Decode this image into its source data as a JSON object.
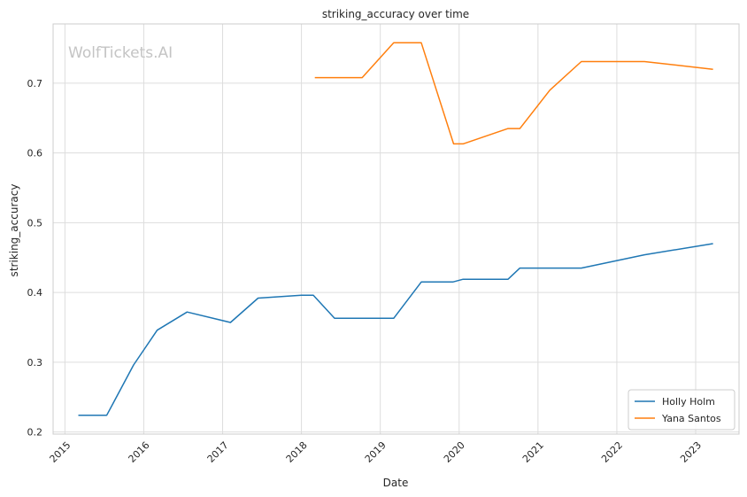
{
  "chart_data": {
    "type": "line",
    "title": "striking_accuracy over time",
    "xlabel": "Date",
    "ylabel": "striking_accuracy",
    "watermark": "WolfTickets.AI",
    "x_ticks": [
      "2015",
      "2016",
      "2017",
      "2018",
      "2019",
      "2020",
      "2021",
      "2022",
      "2023"
    ],
    "y_ticks": [
      "0.2",
      "0.3",
      "0.4",
      "0.5",
      "0.6",
      "0.7"
    ],
    "xlim": [
      2014.85,
      2023.55
    ],
    "ylim": [
      0.197,
      0.785
    ],
    "grid": true,
    "legend_position": "lower-right",
    "series": [
      {
        "name": "Holly Holm",
        "color": "#1f77b4",
        "points": [
          [
            2015.17,
            0.224
          ],
          [
            2015.53,
            0.224
          ],
          [
            2015.87,
            0.296
          ],
          [
            2016.17,
            0.346
          ],
          [
            2016.55,
            0.372
          ],
          [
            2017.1,
            0.357
          ],
          [
            2017.45,
            0.392
          ],
          [
            2018.0,
            0.396
          ],
          [
            2018.15,
            0.396
          ],
          [
            2018.42,
            0.363
          ],
          [
            2019.17,
            0.363
          ],
          [
            2019.52,
            0.415
          ],
          [
            2019.92,
            0.415
          ],
          [
            2020.05,
            0.419
          ],
          [
            2020.62,
            0.419
          ],
          [
            2020.77,
            0.435
          ],
          [
            2021.55,
            0.435
          ],
          [
            2022.35,
            0.454
          ],
          [
            2023.22,
            0.47
          ]
        ]
      },
      {
        "name": "Yana Santos",
        "color": "#ff7f0e",
        "points": [
          [
            2018.17,
            0.708
          ],
          [
            2018.77,
            0.708
          ],
          [
            2019.17,
            0.758
          ],
          [
            2019.52,
            0.758
          ],
          [
            2019.93,
            0.613
          ],
          [
            2020.05,
            0.613
          ],
          [
            2020.62,
            0.635
          ],
          [
            2020.77,
            0.635
          ],
          [
            2021.15,
            0.69
          ],
          [
            2021.55,
            0.731
          ],
          [
            2022.35,
            0.731
          ],
          [
            2023.22,
            0.72
          ]
        ]
      }
    ]
  }
}
